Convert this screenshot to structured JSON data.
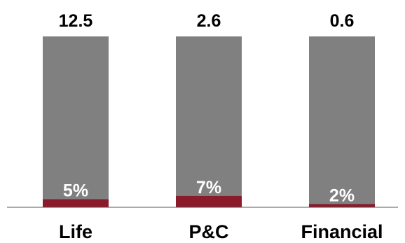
{
  "chart_data": {
    "type": "bar",
    "categories": [
      "Life",
      "P&C",
      "Financial"
    ],
    "series": [
      {
        "values": [
          12.5,
          2.6,
          0.6
        ]
      },
      {
        "values": [
          5,
          7,
          2
        ]
      }
    ],
    "value_labels": [
      "12.5",
      "2.6",
      "0.6"
    ],
    "share_labels": [
      "5%",
      "7%",
      "2%"
    ],
    "colors": {
      "total": "#808080",
      "share": "#8b1a2b",
      "axis": "#555555"
    },
    "legend": "none",
    "grid": false
  }
}
